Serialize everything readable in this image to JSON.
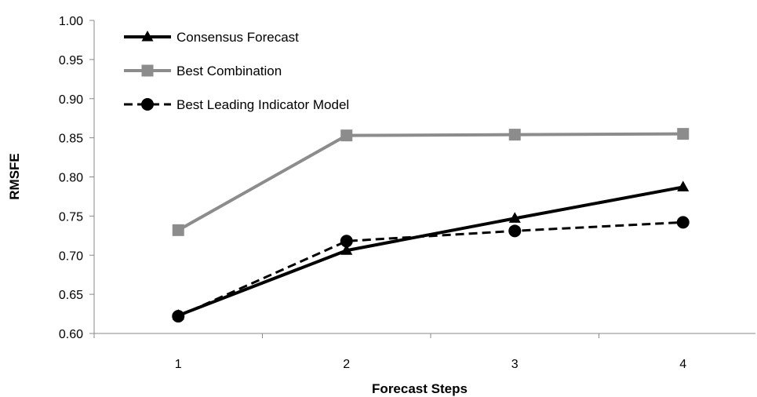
{
  "chart_data": {
    "type": "line",
    "title": "",
    "xlabel": "Forecast Steps",
    "ylabel": "RMSFE",
    "categories": [
      "1",
      "2",
      "3",
      "4"
    ],
    "ylim": [
      0.6,
      1.0
    ],
    "yticks": [
      "0.60",
      "0.65",
      "0.70",
      "0.75",
      "0.80",
      "0.85",
      "0.90",
      "0.95",
      "1.00"
    ],
    "grid": false,
    "legend_position": "top-left",
    "series": [
      {
        "name": "Consensus Forecast",
        "values": [
          0.623,
          0.706,
          0.747,
          0.787
        ],
        "color": "#000000",
        "marker": "triangle",
        "dash": "solid"
      },
      {
        "name": "Best Combination",
        "values": [
          0.732,
          0.853,
          0.854,
          0.855
        ],
        "color": "#8c8c8c",
        "marker": "square",
        "dash": "solid"
      },
      {
        "name": "Best Leading Indicator Model",
        "values": [
          0.622,
          0.718,
          0.731,
          0.742
        ],
        "color": "#000000",
        "marker": "circle",
        "dash": "dashed"
      }
    ]
  }
}
